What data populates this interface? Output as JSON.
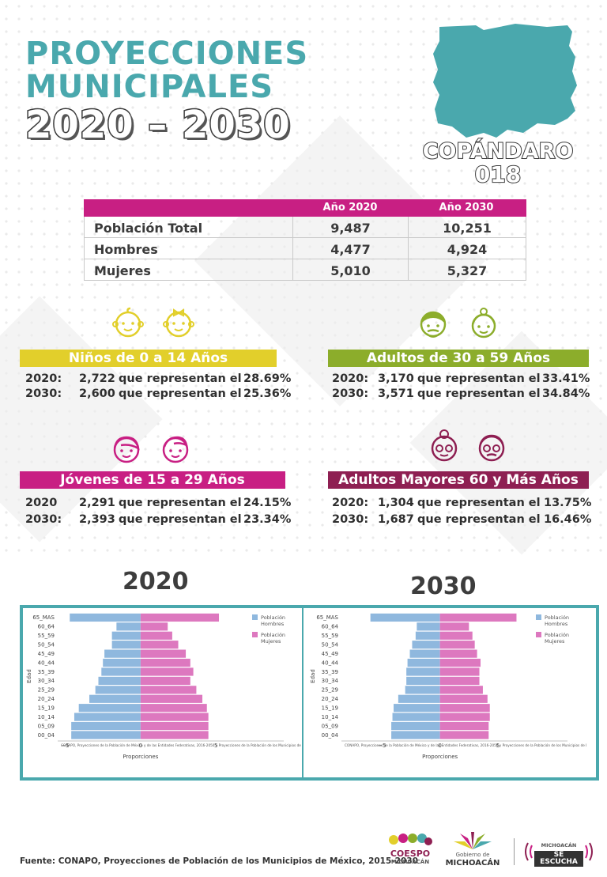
{
  "header": {
    "title_line1": "PROYECCIONES",
    "title_line2": "MUNICIPALES",
    "title_line3": "2020 – 2030",
    "municipality": "COPÁNDARO",
    "code": "018"
  },
  "population_table": {
    "col_2020": "Año 2020",
    "col_2030": "Año 2030",
    "rows": [
      {
        "label": "Población Total",
        "y2020": "9,487",
        "y2030": "10,251"
      },
      {
        "label": "Hombres",
        "y2020": "4,477",
        "y2030": "4,924"
      },
      {
        "label": "Mujeres",
        "y2020": "5,010",
        "y2030": "5,327"
      }
    ]
  },
  "age_groups": {
    "ninos": {
      "title": "Niños de 0 a 14 Años",
      "color": "#e2cf2b",
      "r1": {
        "year": "2020:",
        "value": "2,722",
        "text": "que representan el",
        "pct": "28.69%"
      },
      "r2": {
        "year": "2030:",
        "value": "2,600",
        "text": "que representan el",
        "pct": "25.36%"
      }
    },
    "adultos": {
      "title": "Adultos de 30 a 59 Años",
      "color": "#8cad2b",
      "r1": {
        "year": "2020:",
        "value": "3,170",
        "text": "que representan el",
        "pct": "33.41%"
      },
      "r2": {
        "year": "2030:",
        "value": "3,571",
        "text": "que representan el",
        "pct": "34.84%"
      }
    },
    "jovenes": {
      "title": "Jóvenes de 15 a 29 Años",
      "color": "#c81f83",
      "r1": {
        "year": "2020",
        "value": "2,291",
        "text": "que representan el",
        "pct": "24.15%"
      },
      "r2": {
        "year": "2030:",
        "value": "2,393",
        "text": "que representan el",
        "pct": "23.34%"
      }
    },
    "mayores": {
      "title": "Adultos Mayores  60 y Más Años",
      "color": "#8e1f52",
      "r1": {
        "year": "2020:",
        "value": "1,304",
        "text": "que representan el",
        "pct": "13.75%"
      },
      "r2": {
        "year": "2030:",
        "value": "1,687",
        "text": "que representan el",
        "pct": "16.46%"
      }
    }
  },
  "pyramids": {
    "title_2020": "2020",
    "title_2030": "2030"
  },
  "chart_data": [
    {
      "type": "bar",
      "orientation": "horizontal",
      "title": "2020",
      "categories": [
        "00_04",
        "05_09",
        "10_14",
        "15_19",
        "20_24",
        "25_29",
        "30_34",
        "35_39",
        "40_44",
        "45_49",
        "50_54",
        "55_59",
        "60_64",
        "65_MAS"
      ],
      "series": [
        {
          "name": "Población Hombres",
          "color": "#8fb8de",
          "values": [
            -4.6,
            -4.6,
            -4.4,
            -4.1,
            -3.4,
            -3.0,
            -2.8,
            -2.6,
            -2.5,
            -2.4,
            -1.9,
            -1.9,
            -1.6,
            -4.7
          ]
        },
        {
          "name": "Población Mujeres",
          "color": "#dd78bf",
          "values": [
            4.5,
            4.5,
            4.5,
            4.4,
            4.1,
            3.7,
            3.3,
            3.5,
            3.3,
            3.0,
            2.5,
            2.1,
            1.8,
            5.2
          ]
        }
      ],
      "xlabel": "Proporciones",
      "ylabel": "Edad",
      "xticks": [
        "−5",
        "0",
        "5"
      ],
      "xlim": [
        -5.5,
        9.5
      ],
      "legend": "top-right",
      "note": "CONAPO, Proyecciones de la Población de México y de las Entidades Federativas, 2016-2050 y Proyecciones de la Población de los Municipios de Méxic"
    },
    {
      "type": "bar",
      "orientation": "horizontal",
      "title": "2030",
      "categories": [
        "00_04",
        "05_09",
        "10_14",
        "15_19",
        "20_24",
        "25_29",
        "30_34",
        "35_39",
        "40_44",
        "45_49",
        "50_54",
        "55_59",
        "60_64",
        "65_MAS"
      ],
      "series": [
        {
          "name": "Población Hombres",
          "color": "#8fb8de",
          "values": [
            -4.2,
            -4.2,
            -4.1,
            -4.0,
            -3.6,
            -3.0,
            -2.9,
            -2.9,
            -2.8,
            -2.6,
            -2.4,
            -2.1,
            -2.0,
            -6.0
          ]
        },
        {
          "name": "Población Mujeres",
          "color": "#dd78bf",
          "values": [
            4.2,
            4.2,
            4.3,
            4.3,
            4.1,
            3.7,
            3.4,
            3.4,
            3.5,
            3.2,
            3.0,
            2.8,
            2.5,
            6.6
          ]
        }
      ],
      "xlabel": "Proporciones",
      "ylabel": "Edad",
      "xticks": [
        "−5",
        "0",
        "5"
      ],
      "xlim": [
        -8.5,
        11
      ],
      "legend": "top-right",
      "note": "CONAPO, Proyecciones de la Población de México y de las Entidades Federativas, 2016-2050 y Proyecciones de la Población de los Municipios de Méxic"
    }
  ],
  "footer": {
    "source": "Fuente: CONAPO, Proyecciones de Población de los Municipios de México, 2015-2030",
    "logo1_line1": "COESPO",
    "logo1_line2": "MICHOACÁN",
    "logo2_line1": "Gobierno de",
    "logo2_line2": "MICHOACÁN",
    "logo3_line1": "MICHOACÁN",
    "logo3_line2": "SE ESCUCHA"
  }
}
